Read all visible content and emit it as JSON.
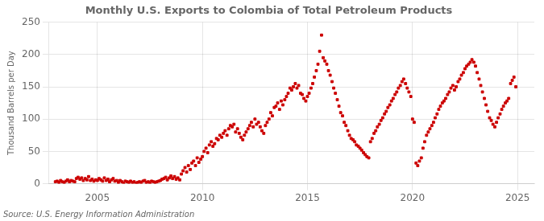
{
  "chart_data": {
    "type": "scatter",
    "title": "Monthly U.S. Exports to Colombia of Total Petroleum Products",
    "ylabel": "Thousand Barrels per Day",
    "source": "Source: U.S. Energy Information Administration",
    "color": "#cc0000",
    "marker": "square",
    "grid": true,
    "xlim": [
      2002.7,
      2025.8
    ],
    "xticks": [
      2005,
      2010,
      2015,
      2020,
      2025
    ],
    "ylim": [
      0,
      250
    ],
    "yticks": [
      0,
      50,
      100,
      150,
      200,
      250
    ],
    "x": [
      2003.0,
      2003.08,
      2003.17,
      2003.25,
      2003.33,
      2003.42,
      2003.5,
      2003.58,
      2003.67,
      2003.75,
      2003.83,
      2003.92,
      2004.0,
      2004.08,
      2004.17,
      2004.25,
      2004.33,
      2004.42,
      2004.5,
      2004.58,
      2004.67,
      2004.75,
      2004.83,
      2004.92,
      2005.0,
      2005.08,
      2005.17,
      2005.25,
      2005.33,
      2005.42,
      2005.5,
      2005.58,
      2005.67,
      2005.75,
      2005.83,
      2005.92,
      2006.0,
      2006.08,
      2006.17,
      2006.25,
      2006.33,
      2006.42,
      2006.5,
      2006.58,
      2006.67,
      2006.75,
      2006.83,
      2006.92,
      2007.0,
      2007.08,
      2007.17,
      2007.25,
      2007.33,
      2007.42,
      2007.5,
      2007.58,
      2007.67,
      2007.75,
      2007.83,
      2007.92,
      2008.0,
      2008.08,
      2008.17,
      2008.25,
      2008.33,
      2008.42,
      2008.5,
      2008.58,
      2008.67,
      2008.75,
      2008.83,
      2008.92,
      2009.0,
      2009.08,
      2009.17,
      2009.25,
      2009.33,
      2009.42,
      2009.5,
      2009.58,
      2009.67,
      2009.75,
      2009.83,
      2009.92,
      2010.0,
      2010.08,
      2010.17,
      2010.25,
      2010.33,
      2010.42,
      2010.5,
      2010.58,
      2010.67,
      2010.75,
      2010.83,
      2010.92,
      2011.0,
      2011.08,
      2011.17,
      2011.25,
      2011.33,
      2011.42,
      2011.5,
      2011.58,
      2011.67,
      2011.75,
      2011.83,
      2011.92,
      2012.0,
      2012.08,
      2012.17,
      2012.25,
      2012.33,
      2012.42,
      2012.5,
      2012.58,
      2012.67,
      2012.75,
      2012.83,
      2012.92,
      2013.0,
      2013.08,
      2013.17,
      2013.25,
      2013.33,
      2013.42,
      2013.5,
      2013.58,
      2013.67,
      2013.75,
      2013.83,
      2013.92,
      2014.0,
      2014.08,
      2014.17,
      2014.25,
      2014.33,
      2014.42,
      2014.5,
      2014.58,
      2014.67,
      2014.75,
      2014.83,
      2014.92,
      2015.0,
      2015.08,
      2015.17,
      2015.25,
      2015.33,
      2015.42,
      2015.5,
      2015.58,
      2015.67,
      2015.75,
      2015.83,
      2015.92,
      2016.0,
      2016.08,
      2016.17,
      2016.25,
      2016.33,
      2016.42,
      2016.5,
      2016.58,
      2016.67,
      2016.75,
      2016.83,
      2016.92,
      2017.0,
      2017.08,
      2017.17,
      2017.25,
      2017.33,
      2017.42,
      2017.5,
      2017.58,
      2017.67,
      2017.75,
      2017.83,
      2017.92,
      2018.0,
      2018.08,
      2018.17,
      2018.25,
      2018.33,
      2018.42,
      2018.5,
      2018.58,
      2018.67,
      2018.75,
      2018.83,
      2018.92,
      2019.0,
      2019.08,
      2019.17,
      2019.25,
      2019.33,
      2019.42,
      2019.5,
      2019.58,
      2019.67,
      2019.75,
      2019.83,
      2019.92,
      2020.0,
      2020.08,
      2020.17,
      2020.25,
      2020.33,
      2020.42,
      2020.5,
      2020.58,
      2020.67,
      2020.75,
      2020.83,
      2020.92,
      2021.0,
      2021.08,
      2021.17,
      2021.25,
      2021.33,
      2021.42,
      2021.5,
      2021.58,
      2021.67,
      2021.75,
      2021.83,
      2021.92,
      2022.0,
      2022.08,
      2022.17,
      2022.25,
      2022.33,
      2022.42,
      2022.5,
      2022.58,
      2022.67,
      2022.75,
      2022.83,
      2022.92,
      2023.0,
      2023.08,
      2023.17,
      2023.25,
      2023.33,
      2023.42,
      2023.5,
      2023.58,
      2023.67,
      2023.75,
      2023.83,
      2023.92,
      2024.0,
      2024.08,
      2024.17,
      2024.25,
      2024.33,
      2024.42,
      2024.5,
      2024.58,
      2024.67,
      2024.75,
      2024.83,
      2024.92
    ],
    "values": [
      3,
      4,
      2,
      5,
      3,
      2,
      4,
      6,
      3,
      5,
      4,
      3,
      8,
      10,
      7,
      9,
      5,
      8,
      6,
      11,
      5,
      7,
      4,
      6,
      5,
      8,
      6,
      4,
      9,
      5,
      7,
      3,
      6,
      8,
      4,
      5,
      2,
      5,
      3,
      1,
      4,
      3,
      2,
      4,
      2,
      3,
      1,
      2,
      3,
      2,
      4,
      5,
      2,
      3,
      1,
      4,
      3,
      2,
      3,
      4,
      5,
      7,
      8,
      10,
      6,
      9,
      12,
      8,
      11,
      7,
      9,
      6,
      15,
      20,
      25,
      18,
      28,
      22,
      32,
      35,
      28,
      40,
      33,
      38,
      42,
      50,
      55,
      48,
      60,
      65,
      58,
      62,
      70,
      68,
      75,
      72,
      78,
      82,
      75,
      85,
      90,
      88,
      92,
      80,
      85,
      78,
      72,
      68,
      75,
      80,
      85,
      90,
      95,
      88,
      100,
      92,
      95,
      88,
      82,
      78,
      90,
      95,
      100,
      110,
      105,
      118,
      120,
      125,
      115,
      128,
      122,
      130,
      135,
      140,
      148,
      145,
      150,
      155,
      148,
      152,
      140,
      138,
      132,
      128,
      135,
      140,
      148,
      155,
      165,
      175,
      185,
      205,
      230,
      195,
      190,
      185,
      175,
      168,
      158,
      148,
      140,
      130,
      120,
      110,
      105,
      95,
      90,
      82,
      75,
      70,
      68,
      65,
      60,
      58,
      55,
      52,
      48,
      45,
      42,
      40,
      65,
      70,
      78,
      82,
      88,
      92,
      98,
      102,
      108,
      112,
      118,
      122,
      128,
      132,
      138,
      142,
      148,
      152,
      158,
      162,
      155,
      148,
      142,
      135,
      100,
      95,
      32,
      28,
      35,
      40,
      55,
      65,
      75,
      80,
      85,
      90,
      95,
      102,
      108,
      115,
      120,
      125,
      128,
      132,
      138,
      142,
      148,
      152,
      145,
      150,
      158,
      162,
      168,
      172,
      178,
      182,
      185,
      188,
      192,
      188,
      182,
      172,
      162,
      152,
      142,
      132,
      122,
      112,
      102,
      98,
      92,
      88,
      95,
      102,
      108,
      115,
      120,
      125,
      128,
      132,
      155,
      160,
      165,
      150
    ]
  }
}
